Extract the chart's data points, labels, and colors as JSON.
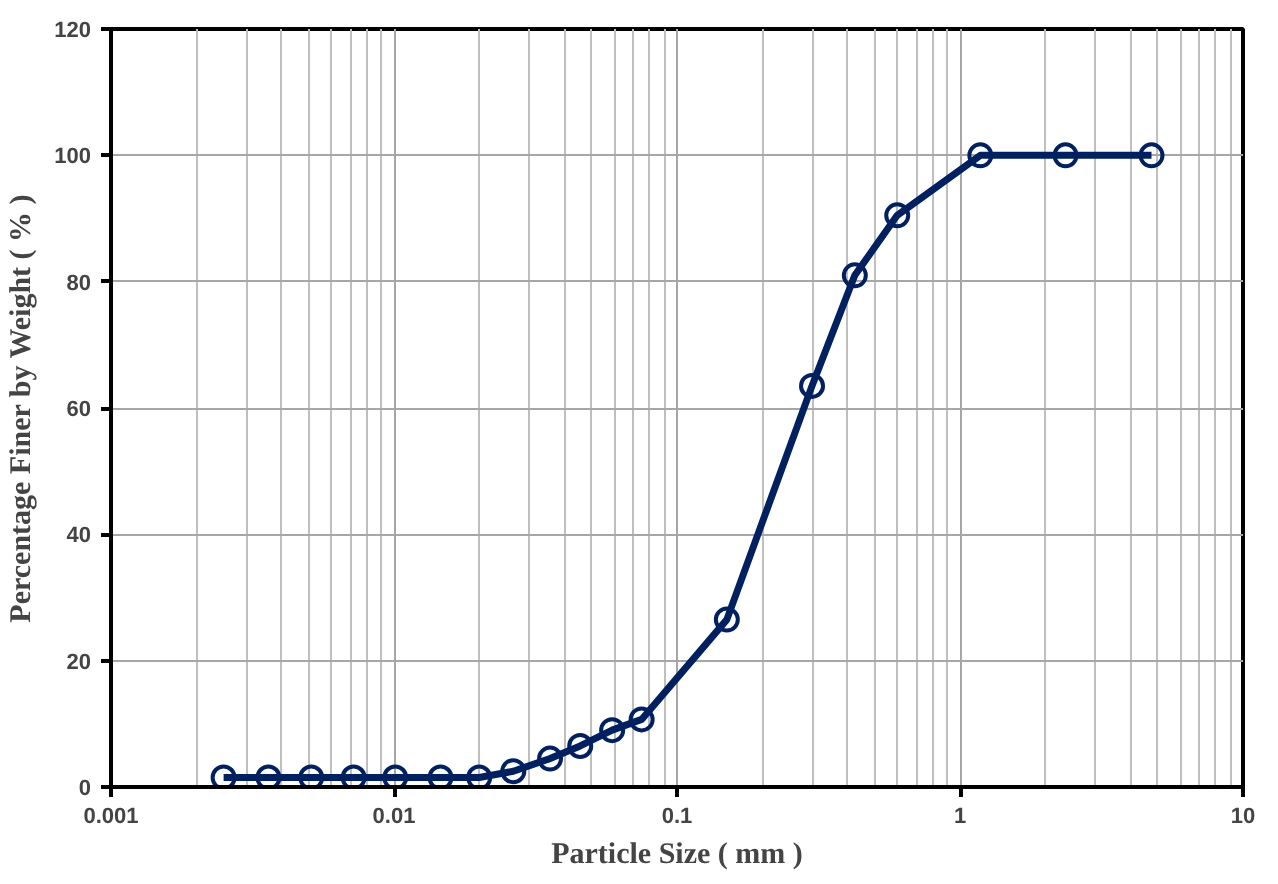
{
  "chart_data": {
    "type": "line",
    "xlabel": "Particle Size ( mm )",
    "ylabel": "Percentage Finer by Weight ( % )",
    "x": [
      0.0025,
      0.0036,
      0.0051,
      0.0072,
      0.0101,
      0.0146,
      0.02,
      0.0264,
      0.0356,
      0.0455,
      0.059,
      0.075,
      0.15,
      0.3,
      0.425,
      0.6,
      1.18,
      2.36,
      4.75
    ],
    "series": [
      {
        "color": "#002060",
        "values": [
          1.5,
          1.5,
          1.5,
          1.5,
          1.5,
          1.5,
          1.5,
          2.5,
          4.5,
          6.5,
          9,
          10.7,
          26.5,
          63.5,
          81,
          90.5,
          100,
          100,
          100
        ]
      }
    ],
    "log": "x",
    "xlim": [
      0.001,
      10
    ],
    "xticks": [
      0.001,
      0.01,
      0.1,
      1,
      10
    ],
    "ylim": [
      0,
      120
    ],
    "yticks": [
      0,
      20,
      40,
      60,
      80,
      100,
      120
    ],
    "grid": true,
    "marker": "circle",
    "line_style": "solid"
  }
}
